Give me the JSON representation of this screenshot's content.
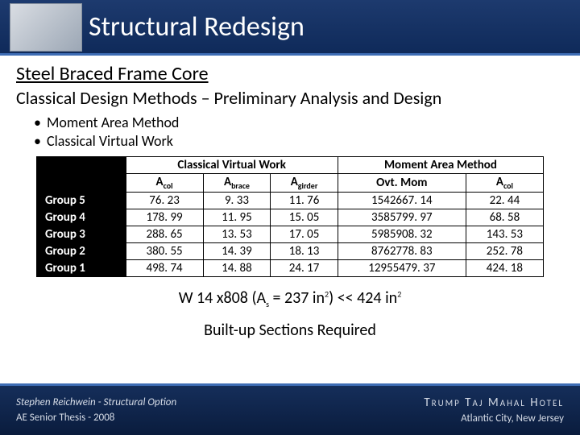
{
  "title": "Structural Redesign",
  "subtitle1": "Steel Braced Frame Core",
  "subtitle2": "Classical Design Methods – Preliminary Analysis and Design",
  "bullets": [
    "Moment Area Method",
    "Classical Virtual Work"
  ],
  "table": {
    "section1": "Classical Virtual Work",
    "section2": "Moment Area Method",
    "cols1": [
      "A",
      "A",
      "A"
    ],
    "cols1_sub": [
      "col",
      "brace",
      "girder"
    ],
    "cols2": [
      "Ovt. Mom",
      "A"
    ],
    "cols2_sub": [
      "",
      "col"
    ],
    "rows": [
      "Group 5",
      "Group 4",
      "Group 3",
      "Group 2",
      "Group 1"
    ],
    "data1": [
      [
        "76. 23",
        "9. 33",
        "11. 76"
      ],
      [
        "178. 99",
        "11. 95",
        "15. 05"
      ],
      [
        "288. 65",
        "13. 53",
        "17. 05"
      ],
      [
        "380. 55",
        "14. 39",
        "18. 13"
      ],
      [
        "498. 74",
        "14. 88",
        "24. 17"
      ]
    ],
    "data2": [
      [
        "1542667. 14",
        "22. 44"
      ],
      [
        "3585799. 97",
        "68. 58"
      ],
      [
        "5985908. 32",
        "143. 53"
      ],
      [
        "8762778. 83",
        "252. 78"
      ],
      [
        "12955479. 37",
        "424. 18"
      ]
    ]
  },
  "formula_pre": "W 14 x808 (A",
  "formula_sub1": "s",
  "formula_mid": " = 237 in",
  "formula_sup1": "2",
  "formula_mid2": ") << 424 in",
  "formula_sup2": "2",
  "builtup": "Built-up Sections Required",
  "footer": {
    "author": "Stephen Reichwein - Structural Option",
    "thesis": "AE Senior Thesis - 2008",
    "brand": "Trump Taj Mahal Hotel",
    "loc": "Atlantic City, New Jersey"
  },
  "colors": {
    "header_bg": "#14316a",
    "accent": "#3e6db5"
  }
}
